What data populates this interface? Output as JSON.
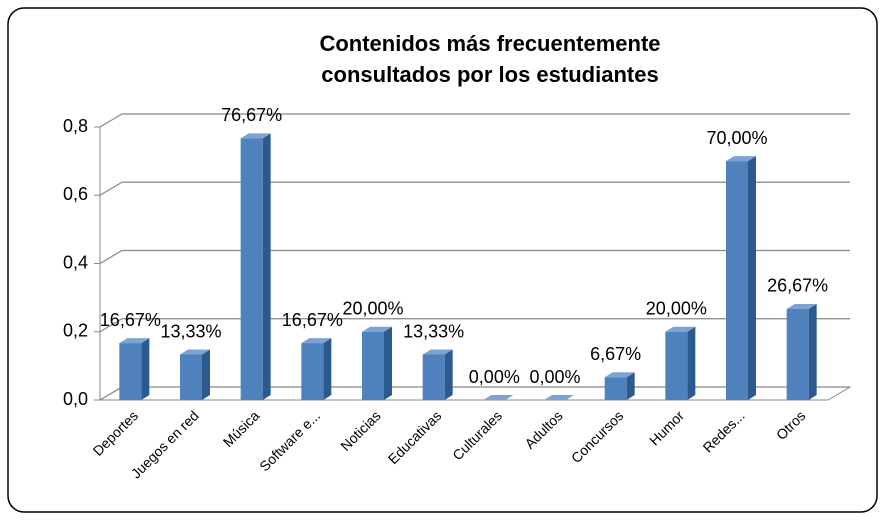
{
  "chart_data": {
    "type": "bar",
    "title": "Contenidos más frecuentemente consultados por los estudiantes",
    "title_lines": [
      "Contenidos más frecuentemente",
      "consultados por los estudiantes"
    ],
    "categories": [
      "Deportes",
      "Juegos en red",
      "Música",
      "Software e...",
      "Noticias",
      "Educativas",
      "Culturales",
      "Adultos",
      "Concursos",
      "Humor",
      "Redes...",
      "Otros"
    ],
    "values": [
      0.1667,
      0.1333,
      0.7667,
      0.1667,
      0.2,
      0.1333,
      0,
      0,
      0.0667,
      0.2,
      0.7,
      0.2667
    ],
    "value_labels": [
      "16,67%",
      "13,33%",
      "76,67%",
      "16,67%",
      "20,00%",
      "13,33%",
      "0,00%",
      "0,00%",
      "6,67%",
      "20,00%",
      "70,00%",
      "26,67%"
    ],
    "color": "#4f81bd",
    "ylim": [
      0,
      0.8
    ],
    "yticks": [
      {
        "value": 0,
        "label": "0,0"
      },
      {
        "value": 0.2,
        "label": "0,2"
      },
      {
        "value": 0.4,
        "label": "0,4"
      },
      {
        "value": 0.6,
        "label": "0,6"
      },
      {
        "value": 0.8,
        "label": "0,8"
      }
    ],
    "grid": true
  }
}
